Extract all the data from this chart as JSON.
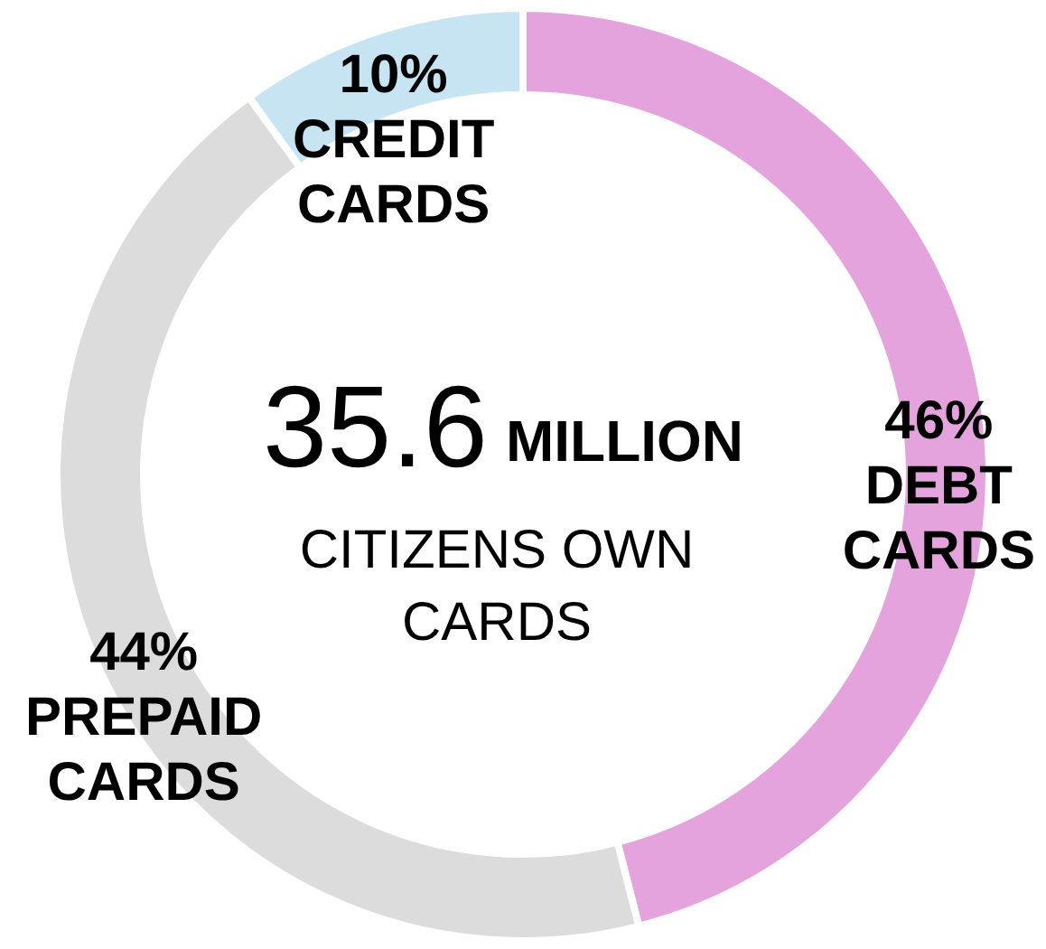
{
  "chart_data": {
    "type": "donut",
    "categories": [
      "DEBT CARDS",
      "PREPAID CARDS",
      "CREDIT CARDS"
    ],
    "values": [
      46,
      44,
      10
    ],
    "colors": [
      "#e5a3dd",
      "#dcdcdc",
      "#c6e4f2"
    ],
    "value_labels": [
      "46%",
      "44%",
      "10%"
    ],
    "annotations": [
      "35.6",
      "MILLION",
      "CITIZENS OWN CARDS"
    ]
  }
}
